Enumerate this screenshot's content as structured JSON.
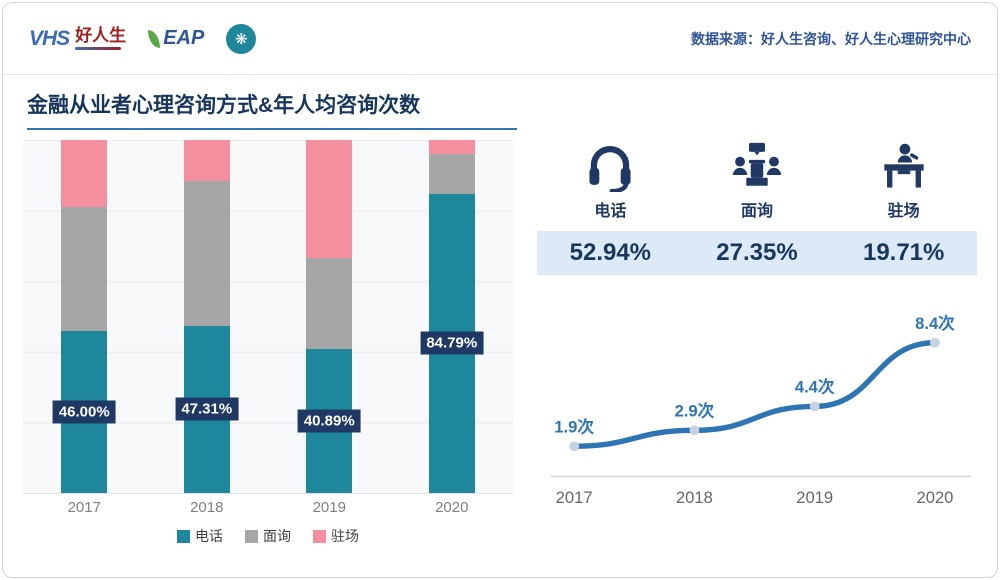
{
  "header": {
    "logos": {
      "vhs": "VHS",
      "brand": "好人生",
      "eap": "EAP"
    },
    "data_source": "数据来源：好人生咨询、好人生心理研究中心"
  },
  "title": "金融从业者心理咨询方式&年人均咨询次数",
  "stats": [
    {
      "icon": "headset-icon",
      "label": "电话",
      "value": "52.94%"
    },
    {
      "icon": "meeting-icon",
      "label": "面询",
      "value": "27.35%"
    },
    {
      "icon": "desk-icon",
      "label": "驻场",
      "value": "19.71%"
    }
  ],
  "colors": {
    "navy": "#1F3864",
    "teal": "#1E879B",
    "gray": "#A6A6A6",
    "pink": "#F48FA0",
    "line_blue": "#2E75B6",
    "band_bg": "#DCE9F6"
  },
  "chart_data": [
    {
      "type": "bar",
      "stacked": true,
      "title": "金融从业者心理咨询方式",
      "categories": [
        "2017",
        "2018",
        "2019",
        "2020"
      ],
      "series": [
        {
          "name": "电话",
          "color": "#1E879B",
          "values": [
            46.0,
            47.31,
            40.89,
            84.79
          ],
          "labels": [
            "46.00%",
            "47.31%",
            "40.89%",
            "84.79%"
          ]
        },
        {
          "name": "面询",
          "color": "#A6A6A6",
          "values": [
            35.0,
            41.0,
            25.7,
            11.2
          ]
        },
        {
          "name": "驻场",
          "color": "#F48FA0",
          "values": [
            19.0,
            11.69,
            33.41,
            4.01
          ]
        }
      ],
      "ylim": [
        0,
        100
      ],
      "grid": true,
      "legend_position": "bottom"
    },
    {
      "type": "line",
      "title": "年人均咨询次数",
      "x": [
        "2017",
        "2018",
        "2019",
        "2020"
      ],
      "values": [
        1.9,
        2.9,
        4.4,
        8.4
      ],
      "labels": [
        "1.9次",
        "2.9次",
        "4.4次",
        "8.4次"
      ],
      "color": "#2E75B6",
      "ylim": [
        0,
        9
      ]
    }
  ]
}
